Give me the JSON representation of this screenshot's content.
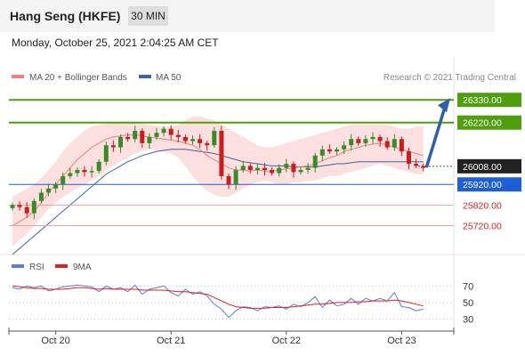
{
  "header": {
    "title": "Hang Seng (HKFE)",
    "timeframe": "30 MIN"
  },
  "datetime": "Monday, October 25, 2021 2:04:25 AM CET",
  "credit": "Research © 2021 Trading Central",
  "colors": {
    "green": "#4e9e10",
    "blue": "#1f5fd6",
    "red": "#e05a5a",
    "candle_up": "#3a8a2a",
    "candle_down": "#c81e1e",
    "bb_fill": "#fcd9d9",
    "ma20": "#f08080",
    "ma50": "#3a66a0",
    "rsi": "#5a7fd6",
    "rsi_ma": "#e02020",
    "arrow": "#2f5fa8"
  },
  "chart_data": [
    {
      "type": "candlestick",
      "name": "price",
      "legend": [
        {
          "label": "MA 20 + Bollinger Bands",
          "color": "#f08080"
        },
        {
          "label": "MA 50",
          "color": "#3a66a0"
        }
      ],
      "ylim": [
        25580,
        26400
      ],
      "x_ticks": [
        {
          "label": "Oct 20",
          "index": 6
        },
        {
          "label": "Oct 21",
          "index": 22
        },
        {
          "label": "Oct 22",
          "index": 38
        },
        {
          "label": "Oct 23",
          "index": 54
        }
      ],
      "n_candles": 58,
      "levels": [
        {
          "value": 26330,
          "label": "26330.00",
          "style": "green-thick"
        },
        {
          "value": 26220,
          "label": "26220.00",
          "style": "green-thick"
        },
        {
          "value": 26008,
          "label": "26008.00",
          "style": "current"
        },
        {
          "value": 25920,
          "label": "25920.00",
          "style": "blue"
        },
        {
          "value": 25820,
          "label": "25820.00",
          "style": "red-thin"
        },
        {
          "value": 25720,
          "label": "25720.00",
          "style": "red-thin"
        }
      ],
      "close": [
        25820,
        25810,
        25780,
        25840,
        25880,
        25900,
        25920,
        25960,
        25975,
        25990,
        25980,
        25985,
        26030,
        26110,
        26100,
        26150,
        26140,
        26180,
        26120,
        26150,
        26170,
        26190,
        26160,
        26150,
        26130,
        26140,
        26120,
        26110,
        26180,
        25960,
        25920,
        25990,
        26010,
        25990,
        26000,
        25990,
        25975,
        26000,
        26020,
        25980,
        25990,
        26000,
        26060,
        26090,
        26080,
        26090,
        26110,
        26140,
        26120,
        26140,
        26150,
        26130,
        26100,
        26140,
        26080,
        26020,
        26010,
        26000
      ],
      "ma20": [
        25720,
        25740,
        25760,
        25790,
        25830,
        25880,
        25920,
        25960,
        26000,
        26040,
        26070,
        26100,
        26120,
        26140,
        26150,
        26155,
        26160,
        26160,
        26155,
        26150,
        26145,
        26140,
        26135,
        26130,
        26120,
        26110,
        26090,
        26060,
        26040,
        26020,
        26000,
        25990,
        25990,
        25985,
        25990,
        25985,
        25985,
        25990,
        25995,
        26000,
        26005,
        26010,
        26020,
        26035,
        26050,
        26060,
        26080,
        26090,
        26100,
        26110,
        26115,
        26120,
        26110,
        26100,
        26090,
        26080,
        26070,
        26060
      ],
      "bb_upper": [
        25860,
        25880,
        25900,
        25920,
        25950,
        25990,
        26030,
        26080,
        26120,
        26150,
        26180,
        26200,
        26210,
        26215,
        26220,
        26225,
        26225,
        26220,
        26215,
        26210,
        26205,
        26200,
        26200,
        26210,
        26230,
        26250,
        26250,
        26240,
        26230,
        26210,
        26190,
        26170,
        26150,
        26130,
        26110,
        26100,
        26100,
        26110,
        26120,
        26130,
        26140,
        26150,
        26160,
        26170,
        26180,
        26190,
        26200,
        26210,
        26210,
        26210,
        26210,
        26210,
        26210,
        26200,
        26190,
        26190,
        26200,
        26200
      ],
      "bb_lower": [
        25620,
        25650,
        25680,
        25720,
        25760,
        25800,
        25830,
        25860,
        25880,
        25900,
        25920,
        25940,
        25960,
        25990,
        26010,
        26030,
        26050,
        26070,
        26080,
        26090,
        26085,
        26080,
        26070,
        26050,
        26010,
        25960,
        25920,
        25890,
        25870,
        25860,
        25860,
        25880,
        25900,
        25920,
        25930,
        25940,
        25930,
        25920,
        25920,
        25930,
        25930,
        25935,
        25940,
        25950,
        25960,
        25960,
        25970,
        25980,
        25990,
        26000,
        26010,
        26020,
        26010,
        26000,
        25990,
        25980,
        25970,
        25970
      ],
      "ma50": [
        25580,
        25610,
        25640,
        25670,
        25700,
        25730,
        25760,
        25790,
        25820,
        25850,
        25880,
        25910,
        25940,
        25970,
        25990,
        26010,
        26030,
        26045,
        26060,
        26070,
        26080,
        26085,
        26090,
        26090,
        26090,
        26085,
        26080,
        26075,
        26070,
        26060,
        26050,
        26040,
        26030,
        26025,
        26020,
        26015,
        26010,
        26010,
        26010,
        26005,
        26005,
        26005,
        26005,
        26010,
        26015,
        26020,
        26020,
        26025,
        26030,
        26030,
        26030,
        26030,
        26030,
        26030,
        26030,
        26030,
        26030,
        26030
      ]
    },
    {
      "type": "line",
      "name": "rsi",
      "legend": [
        {
          "label": "RSI",
          "color": "#5a7fd6"
        },
        {
          "label": "9MA",
          "color": "#e02020"
        }
      ],
      "ylim": [
        22,
        80
      ],
      "y_ticks": [
        70,
        50,
        30
      ],
      "rsi": [
        68,
        66,
        70,
        68,
        70,
        64,
        66,
        69,
        70,
        71,
        70,
        69,
        63,
        70,
        66,
        68,
        63,
        71,
        60,
        66,
        68,
        70,
        62,
        58,
        66,
        60,
        63,
        58,
        48,
        42,
        32,
        40,
        45,
        44,
        40,
        45,
        44,
        46,
        42,
        48,
        45,
        50,
        57,
        44,
        53,
        46,
        48,
        55,
        48,
        55,
        52,
        55,
        52,
        62,
        45,
        44,
        40,
        42
      ],
      "rsi_ma": [
        70,
        69,
        68,
        67,
        67,
        66,
        66,
        66,
        67,
        68,
        68,
        67,
        66,
        67,
        66,
        66,
        66,
        66,
        65,
        65,
        65,
        65,
        64,
        63,
        63,
        62,
        61,
        60,
        56,
        52,
        48,
        45,
        44,
        43,
        43,
        43,
        44,
        44,
        44,
        45,
        46,
        47,
        48,
        48,
        49,
        50,
        50,
        50,
        51,
        51,
        52,
        52,
        52,
        53,
        52,
        50,
        48,
        46
      ]
    }
  ]
}
